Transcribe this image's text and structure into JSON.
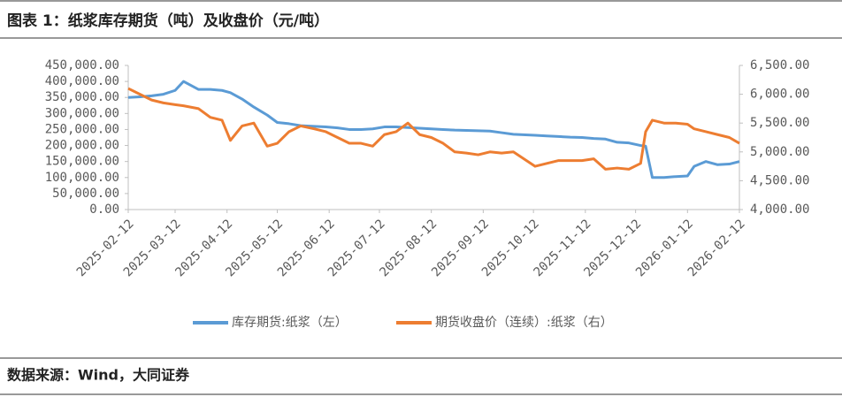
{
  "chart_data": {
    "type": "line",
    "title": "图表 1：纸浆库存期货（吨）及收盘价（元/吨）",
    "source": "数据来源：Wind，大同证券",
    "x": [
      "2025-02-12",
      "2025-02-19",
      "2025-02-26",
      "2025-03-05",
      "2025-03-12",
      "2025-03-17",
      "2025-03-26",
      "2025-04-02",
      "2025-04-09",
      "2025-04-14",
      "2025-04-21",
      "2025-04-28",
      "2025-05-06",
      "2025-05-12",
      "2025-05-19",
      "2025-05-26",
      "2025-06-03",
      "2025-06-10",
      "2025-06-17",
      "2025-06-24",
      "2025-07-01",
      "2025-07-08",
      "2025-07-15",
      "2025-07-22",
      "2025-07-29",
      "2025-08-05",
      "2025-08-12",
      "2025-08-19",
      "2025-08-26",
      "2025-09-02",
      "2025-09-09",
      "2025-09-16",
      "2025-09-23",
      "2025-09-30",
      "2025-10-13",
      "2025-10-20",
      "2025-10-27",
      "2025-11-03",
      "2025-11-10",
      "2025-11-17",
      "2025-11-24",
      "2025-12-01",
      "2025-12-08",
      "2025-12-15",
      "2025-12-18",
      "2025-12-22",
      "2025-12-29",
      "2026-01-05",
      "2026-01-12",
      "2026-01-16",
      "2026-01-23",
      "2026-01-30",
      "2026-02-06",
      "2026-02-12"
    ],
    "series": [
      {
        "name": "库存期货:纸浆（左）",
        "color": "#5b9bd5",
        "axis": "y",
        "values": [
          350000,
          352000,
          355000,
          360000,
          372000,
          400000,
          375000,
          375000,
          372000,
          365000,
          345000,
          320000,
          295000,
          272000,
          268000,
          262000,
          260000,
          258000,
          255000,
          250000,
          250000,
          252000,
          258000,
          258000,
          256000,
          254000,
          252000,
          250000,
          248000,
          247000,
          246000,
          245000,
          240000,
          235000,
          232000,
          230000,
          228000,
          226000,
          225000,
          222000,
          220000,
          210000,
          208000,
          200000,
          198000,
          100000,
          100000,
          103000,
          105000,
          135000,
          150000,
          140000,
          142000,
          150000
        ]
      },
      {
        "name": "期货收盘价（连续）:纸浆（右）",
        "color": "#ed7d31",
        "axis": "y2",
        "values": [
          6100,
          6000,
          5900,
          5850,
          5820,
          5800,
          5750,
          5600,
          5550,
          5200,
          5450,
          5500,
          5100,
          5150,
          5350,
          5450,
          5400,
          5350,
          5250,
          5150,
          5150,
          5100,
          5300,
          5350,
          5500,
          5300,
          5250,
          5150,
          5000,
          4980,
          4950,
          5000,
          4980,
          5000,
          4750,
          4800,
          4850,
          4850,
          4850,
          4880,
          4700,
          4720,
          4700,
          4800,
          5350,
          5550,
          5500,
          5500,
          5480,
          5400,
          5350,
          5300,
          5250,
          5150
        ]
      }
    ],
    "xlim": [
      "2025-02-12",
      "2026-02-12"
    ],
    "xticks": [
      "2025-02-12",
      "2025-03-12",
      "2025-04-12",
      "2025-05-12",
      "2025-06-12",
      "2025-07-12",
      "2025-08-12",
      "2025-09-12",
      "2025-10-12",
      "2025-11-12",
      "2025-12-12",
      "2026-01-12",
      "2026-02-12"
    ],
    "ylim": [
      0,
      450000
    ],
    "yticks": [
      {
        "value": 0,
        "label": "0.00"
      },
      {
        "value": 50000,
        "label": "50,000.00"
      },
      {
        "value": 100000,
        "label": "100,000.00"
      },
      {
        "value": 150000,
        "label": "150,000.00"
      },
      {
        "value": 200000,
        "label": "200,000.00"
      },
      {
        "value": 250000,
        "label": "250,000.00"
      },
      {
        "value": 300000,
        "label": "300,000.00"
      },
      {
        "value": 350000,
        "label": "350,000.00"
      },
      {
        "value": 400000,
        "label": "400,000.00"
      },
      {
        "value": 450000,
        "label": "450,000.00"
      }
    ],
    "y2lim": [
      4000,
      6500
    ],
    "y2ticks": [
      {
        "value": 4000,
        "label": "4,000.00"
      },
      {
        "value": 4500,
        "label": "4,500.00"
      },
      {
        "value": 5000,
        "label": "5,000.00"
      },
      {
        "value": 5500,
        "label": "5,500.00"
      },
      {
        "value": 6000,
        "label": "6,000.00"
      },
      {
        "value": 6500,
        "label": "6,500.00"
      }
    ]
  }
}
